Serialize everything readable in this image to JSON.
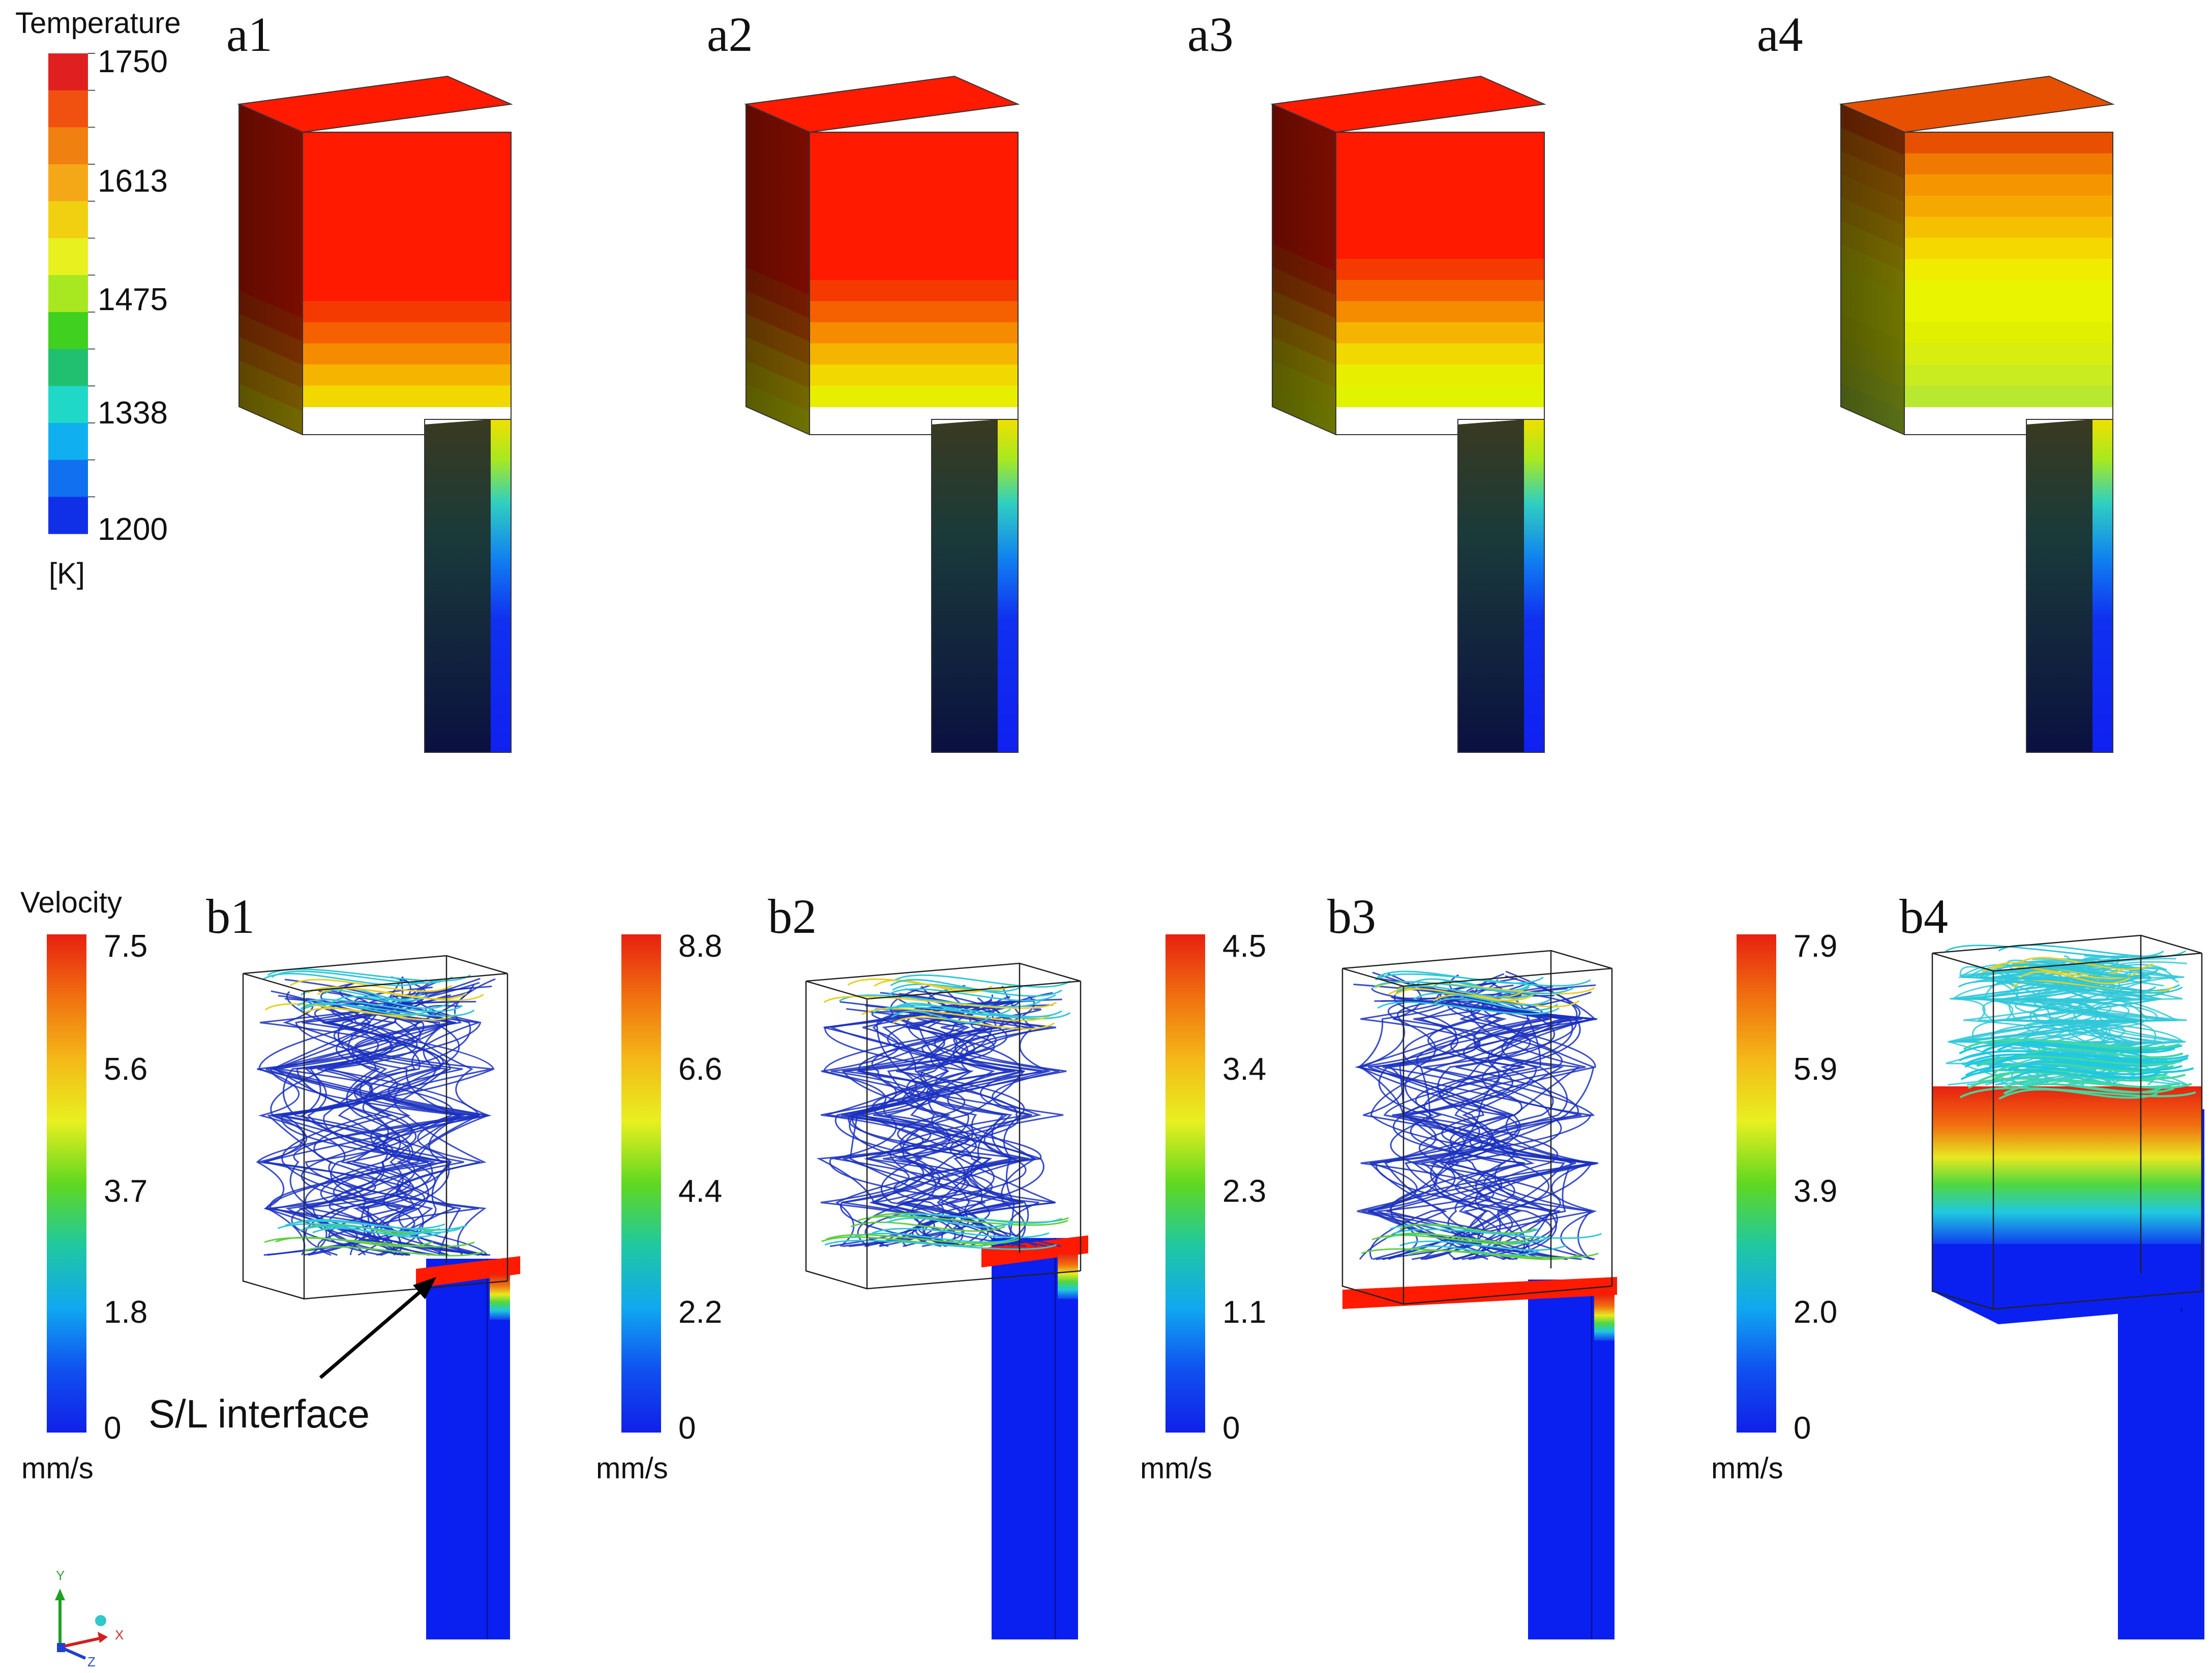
{
  "temperature_legend": {
    "title": "Temperature",
    "ticks": [
      "1750",
      "1613",
      "1475",
      "1338",
      "1200"
    ],
    "unit": "[K]",
    "colors": [
      "#e02020",
      "#f05010",
      "#f08010",
      "#f4a818",
      "#f0d010",
      "#e8f020",
      "#a8e820",
      "#40d020",
      "#20c070",
      "#20d8c8",
      "#10b0f0",
      "#1070f0",
      "#1030e8"
    ]
  },
  "temperature_panels": [
    {
      "label": "a1",
      "bands": [
        "#ff1a00",
        "#ff1a00",
        "#ff1a00",
        "#ff1a00",
        "#ff1a00",
        "#ff1a00",
        "#ff1a00",
        "#ff1a00",
        "#f53a00",
        "#f56000",
        "#f58c00",
        "#f5b400",
        "#f0d800"
      ]
    },
    {
      "label": "a2",
      "bands": [
        "#ff1a00",
        "#ff1a00",
        "#ff1a00",
        "#ff1a00",
        "#ff1a00",
        "#ff1a00",
        "#ff1a00",
        "#f53a00",
        "#f56000",
        "#f58c00",
        "#f5b400",
        "#f0d800",
        "#e8ee00"
      ]
    },
    {
      "label": "a3",
      "bands": [
        "#ff1a00",
        "#ff1a00",
        "#ff1a00",
        "#ff1a00",
        "#ff1a00",
        "#ff1a00",
        "#f53a00",
        "#f56000",
        "#f58c00",
        "#f5b400",
        "#f0d800",
        "#e8ee00",
        "#e0f400"
      ]
    },
    {
      "label": "a4",
      "bands": [
        "#e65000",
        "#f07a00",
        "#f59600",
        "#f5a800",
        "#f5c000",
        "#f5d800",
        "#f0ec00",
        "#e8f400",
        "#e8f400",
        "#e0f000",
        "#d8ee10",
        "#c8ec20",
        "#b8e830"
      ]
    }
  ],
  "velocity_legend_title": "Velocity",
  "velocity_legends": [
    {
      "ticks": [
        "7.5",
        "5.6",
        "3.7",
        "1.8",
        "0"
      ],
      "unit": "mm/s"
    },
    {
      "ticks": [
        "8.8",
        "6.6",
        "4.4",
        "2.2",
        "0"
      ],
      "unit": "mm/s"
    },
    {
      "ticks": [
        "4.5",
        "3.4",
        "2.3",
        "1.1",
        "0"
      ],
      "unit": "mm/s"
    },
    {
      "ticks": [
        "7.9",
        "5.9",
        "3.9",
        "2.0",
        "0"
      ],
      "unit": "mm/s"
    }
  ],
  "velocity_gradient": [
    "#e82010",
    "#f07010",
    "#f4b818",
    "#e8f020",
    "#60d820",
    "#20c8a0",
    "#10a8f0",
    "#1050f0",
    "#1020e8"
  ],
  "velocity_panels": [
    {
      "label": "b1",
      "interface_level": 0.9
    },
    {
      "label": "b2",
      "interface_level": 0.86
    },
    {
      "label": "b3",
      "interface_level": 0.95
    },
    {
      "label": "b4",
      "interface_level": 0.46
    }
  ],
  "annotation": "S/L interface",
  "axes": {
    "x": "X",
    "y": "Y",
    "z": "Z"
  },
  "colors": {
    "liquid": "#ff1a00",
    "solid": "#0a20f0",
    "side_dark": "#101a40",
    "streamline_slow": "#1a30c0",
    "streamline_fast": "#30c8d8"
  }
}
